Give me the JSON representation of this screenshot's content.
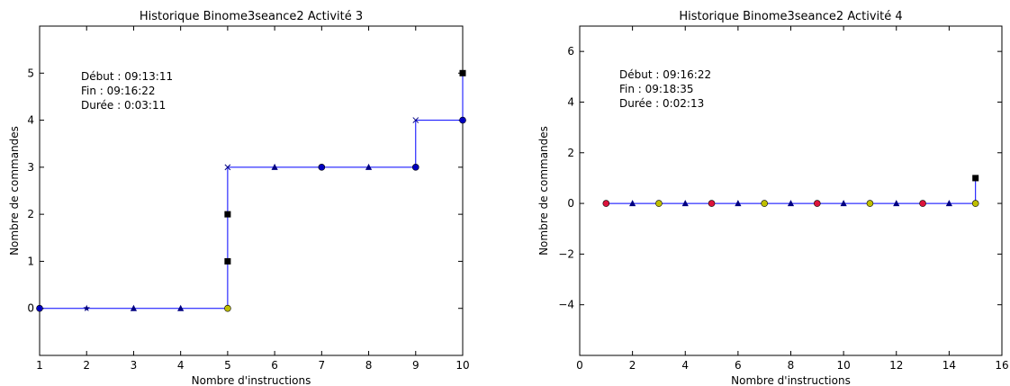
{
  "chart_data": [
    {
      "type": "line",
      "title": "Historique Binome3seance2 Activité 3",
      "xlabel": "Nombre d'instructions",
      "ylabel": "Nombre de commandes",
      "xlim": [
        1,
        10
      ],
      "ylim": [
        -1,
        6
      ],
      "xticks": [
        1,
        2,
        3,
        4,
        5,
        6,
        7,
        8,
        9,
        10
      ],
      "yticks": [
        0,
        1,
        2,
        3,
        4,
        5
      ],
      "grid": false,
      "annotation": [
        "Début : 09:13:11",
        "Fin : 09:16:22",
        "Durée : 0:03:11"
      ],
      "line_color": "#0000ff",
      "series": [
        {
          "x": [
            1,
            2,
            3,
            4,
            5,
            5,
            5,
            5,
            6,
            7,
            8,
            9,
            9,
            10,
            10
          ],
          "y": [
            0,
            0,
            0,
            0,
            0,
            1,
            2,
            3,
            3,
            3,
            3,
            3,
            4,
            4,
            5
          ],
          "markers": [
            "circle",
            "star",
            "triangle",
            "triangle",
            "circle",
            "square",
            "square",
            "x",
            "triangle",
            "circle",
            "triangle",
            "circle",
            "x",
            "circle",
            "square"
          ],
          "marker_colors": [
            "#0000bf",
            "#000080",
            "#000080",
            "#000080",
            "#bfbf00",
            "#000000",
            "#000000",
            "#000080",
            "#000080",
            "#0000bf",
            "#000080",
            "#0000bf",
            "#000080",
            "#0000bf",
            "#000000"
          ]
        }
      ]
    },
    {
      "type": "line",
      "title": "Historique Binome3seance2 Activité 4",
      "xlabel": "Nombre d'instructions",
      "ylabel": "Nombre de commandes",
      "xlim": [
        0,
        16
      ],
      "ylim": [
        -6,
        7
      ],
      "xticks": [
        0,
        2,
        4,
        6,
        8,
        10,
        12,
        14,
        16
      ],
      "yticks": [
        -4,
        -2,
        0,
        2,
        4,
        6
      ],
      "ytick_labels": [
        "−4",
        "−2",
        "0",
        "2",
        "4",
        "6"
      ],
      "grid": false,
      "annotation": [
        "Début : 09:16:22",
        "Fin : 09:18:35",
        "Durée : 0:02:13"
      ],
      "line_color": "#0000ff",
      "series": [
        {
          "x": [
            1,
            2,
            3,
            4,
            5,
            6,
            7,
            8,
            9,
            10,
            11,
            12,
            13,
            14,
            15,
            15
          ],
          "y": [
            0,
            0,
            0,
            0,
            0,
            0,
            0,
            0,
            0,
            0,
            0,
            0,
            0,
            0,
            0,
            1
          ],
          "markers": [
            "circle",
            "triangle",
            "circle",
            "triangle",
            "circle",
            "triangle",
            "circle",
            "triangle",
            "circle",
            "triangle",
            "circle",
            "triangle",
            "circle",
            "triangle",
            "circle",
            "square"
          ],
          "marker_colors": [
            "#dc143c",
            "#000080",
            "#bfbf00",
            "#000080",
            "#dc143c",
            "#000080",
            "#bfbf00",
            "#000080",
            "#dc143c",
            "#000080",
            "#bfbf00",
            "#000080",
            "#dc143c",
            "#000080",
            "#bfbf00",
            "#000000"
          ]
        }
      ]
    }
  ]
}
